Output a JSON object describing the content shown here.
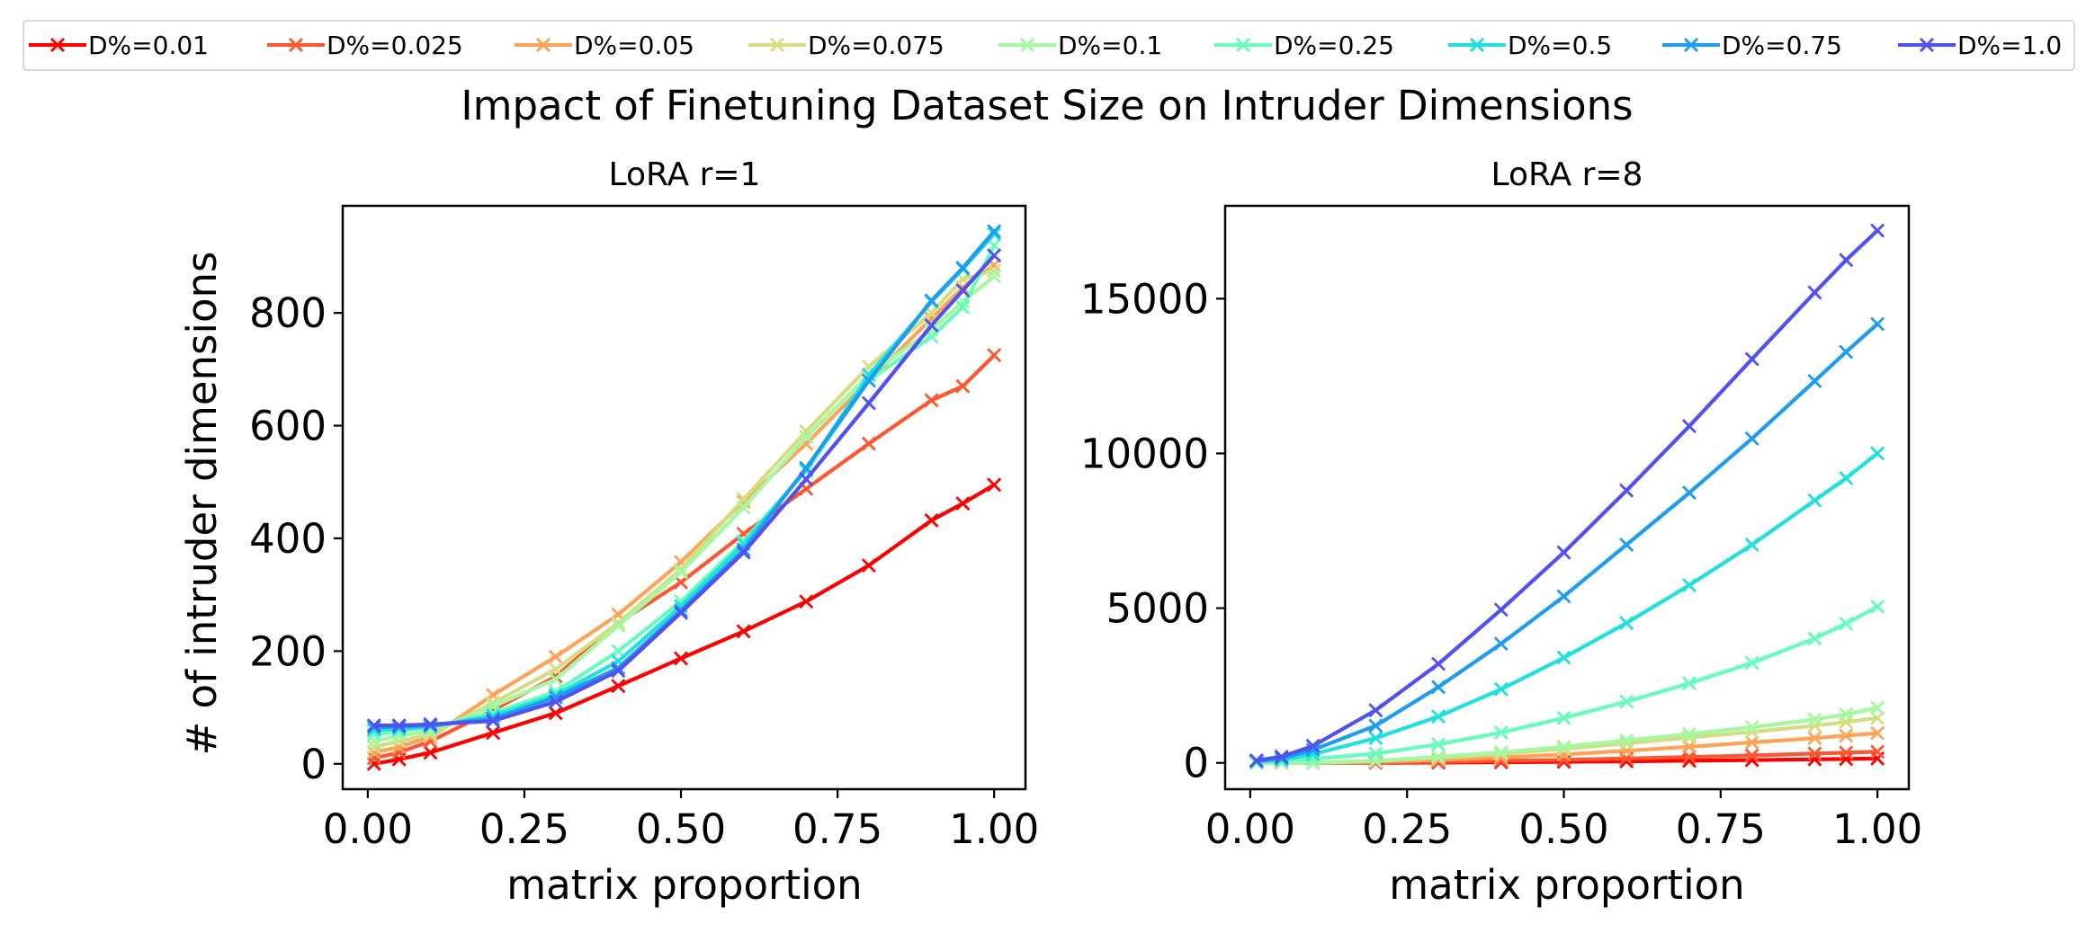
{
  "figure_title": "Impact of Finetuning Dataset Size on Intruder Dimensions",
  "legend": [
    {
      "label": "D%=0.01",
      "color": "#ff0000"
    },
    {
      "label": "D%=0.025",
      "color": "#ff5630"
    },
    {
      "label": "D%=0.05",
      "color": "#ffa256"
    },
    {
      "label": "D%=0.075",
      "color": "#d4dd80"
    },
    {
      "label": "D%=0.1",
      "color": "#a4f89f"
    },
    {
      "label": "D%=0.25",
      "color": "#66fcbc"
    },
    {
      "label": "D%=0.5",
      "color": "#1ee0dd"
    },
    {
      "label": "D%=0.75",
      "color": "#1e9df0"
    },
    {
      "label": "D%=1.0",
      "color": "#5151f0"
    }
  ],
  "chart_data": [
    {
      "type": "line",
      "title": "LoRA r=1",
      "xlabel": "matrix proportion",
      "ylabel": "# of intruder dimensions",
      "xlim": [
        -0.04,
        1.05
      ],
      "ylim": [
        -45,
        990
      ],
      "xticks": [
        0.0,
        0.25,
        0.5,
        0.75,
        1.0
      ],
      "xtick_labels": [
        "0.00",
        "0.25",
        "0.50",
        "0.75",
        "1.00"
      ],
      "yticks": [
        0,
        200,
        400,
        600,
        800
      ],
      "ytick_labels": [
        "0",
        "200",
        "400",
        "600",
        "800"
      ],
      "x": [
        0.01,
        0.05,
        0.1,
        0.2,
        0.3,
        0.4,
        0.5,
        0.6,
        0.7,
        0.8,
        0.9,
        0.95,
        1.0
      ],
      "series": [
        {
          "name": "D%=0.01",
          "values": [
            0,
            8,
            20,
            55,
            90,
            138,
            187,
            235,
            288,
            352,
            432,
            462,
            495
          ]
        },
        {
          "name": "D%=0.025",
          "values": [
            10,
            20,
            40,
            95,
            155,
            250,
            322,
            408,
            488,
            568,
            645,
            670,
            725
          ]
        },
        {
          "name": "D%=0.05",
          "values": [
            20,
            30,
            48,
            122,
            190,
            265,
            358,
            465,
            568,
            680,
            790,
            845,
            885
          ]
        },
        {
          "name": "D%=0.075",
          "values": [
            30,
            40,
            52,
            108,
            168,
            250,
            345,
            470,
            590,
            705,
            800,
            860,
            875
          ]
        },
        {
          "name": "D%=0.1",
          "values": [
            40,
            50,
            58,
            102,
            150,
            245,
            340,
            455,
            580,
            690,
            770,
            820,
            865
          ]
        },
        {
          "name": "D%=0.25",
          "values": [
            52,
            58,
            65,
            90,
            128,
            200,
            288,
            395,
            520,
            680,
            758,
            810,
            920
          ]
        },
        {
          "name": "D%=0.5",
          "values": [
            60,
            62,
            66,
            85,
            122,
            182,
            280,
            390,
            522,
            690,
            820,
            878,
            940
          ]
        },
        {
          "name": "D%=0.75",
          "values": [
            65,
            66,
            68,
            80,
            118,
            170,
            272,
            380,
            525,
            680,
            822,
            880,
            945
          ]
        },
        {
          "name": "D%=1.0",
          "values": [
            68,
            68,
            70,
            76,
            110,
            165,
            268,
            375,
            505,
            640,
            778,
            840,
            902
          ]
        }
      ]
    },
    {
      "type": "line",
      "title": "LoRA r=8",
      "xlabel": "matrix proportion",
      "ylabel": "",
      "xlim": [
        -0.04,
        1.05
      ],
      "ylim": [
        -850,
        18000
      ],
      "xticks": [
        0.0,
        0.25,
        0.5,
        0.75,
        1.0
      ],
      "xtick_labels": [
        "0.00",
        "0.25",
        "0.50",
        "0.75",
        "1.00"
      ],
      "yticks": [
        0,
        5000,
        10000,
        15000
      ],
      "ytick_labels": [
        "0",
        "5000",
        "10000",
        "15000"
      ],
      "x": [
        0.01,
        0.05,
        0.1,
        0.2,
        0.3,
        0.4,
        0.5,
        0.6,
        0.7,
        0.8,
        0.9,
        0.95,
        1.0
      ],
      "series": [
        {
          "name": "D%=0.01",
          "values": [
            0,
            0,
            0,
            5,
            10,
            20,
            35,
            50,
            70,
            90,
            115,
            125,
            140
          ]
        },
        {
          "name": "D%=0.025",
          "values": [
            0,
            0,
            0,
            15,
            35,
            65,
            100,
            140,
            190,
            240,
            300,
            330,
            360
          ]
        },
        {
          "name": "D%=0.05",
          "values": [
            0,
            0,
            0,
            40,
            95,
            175,
            275,
            390,
            520,
            660,
            800,
            880,
            960
          ]
        },
        {
          "name": "D%=0.075",
          "values": [
            0,
            0,
            0,
            60,
            160,
            290,
            450,
            630,
            820,
            1000,
            1200,
            1320,
            1450
          ]
        },
        {
          "name": "D%=0.1",
          "values": [
            0,
            0,
            0,
            70,
            195,
            340,
            520,
            720,
            930,
            1150,
            1400,
            1570,
            1780
          ]
        },
        {
          "name": "D%=0.25",
          "values": [
            20,
            50,
            130,
            300,
            600,
            980,
            1450,
            1980,
            2570,
            3230,
            4020,
            4500,
            5050
          ]
        },
        {
          "name": "D%=0.5",
          "values": [
            40,
            100,
            280,
            800,
            1500,
            2380,
            3400,
            4520,
            5740,
            7050,
            8480,
            9200,
            10000
          ]
        },
        {
          "name": "D%=0.75",
          "values": [
            60,
            150,
            420,
            1200,
            2450,
            3850,
            5380,
            7050,
            8730,
            10480,
            12340,
            13280,
            14180
          ]
        },
        {
          "name": "D%=1.0",
          "values": [
            80,
            200,
            550,
            1700,
            3200,
            4950,
            6800,
            8800,
            10880,
            13050,
            15200,
            16250,
            17200
          ]
        }
      ]
    }
  ]
}
